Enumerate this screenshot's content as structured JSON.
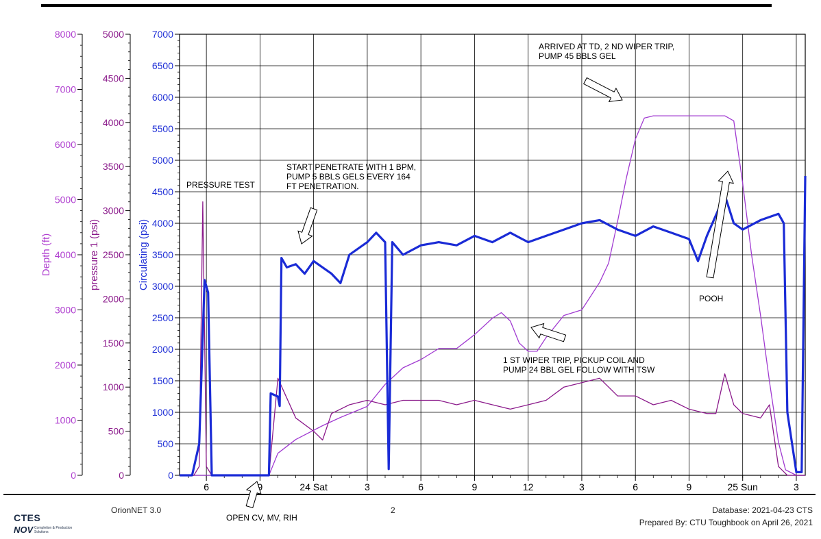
{
  "footer": {
    "software": "OrionNET 3.0",
    "page_number": "2",
    "database": "Database: 2021-04-23 CTS",
    "prepared_by": "Prepared By: CTU Toughbook on April 26, 2021",
    "logo_text": "CTES",
    "logo_brand": "NOV",
    "logo_subtitle": "Completion & Production Solutions"
  },
  "chart_data": {
    "type": "line",
    "x_tick_labels": [
      "6",
      "9",
      "24 Sat",
      "3",
      "6",
      "9",
      "12",
      "3",
      "6",
      "9",
      "25 Sun",
      "3"
    ],
    "x_hours": [
      6,
      9,
      12,
      15,
      18,
      21,
      24,
      27,
      30,
      33,
      36,
      39
    ],
    "xlim_hours": [
      4.5,
      39.5
    ],
    "axes": [
      {
        "key": "depth",
        "label": "Depth  (ft)",
        "color": "#b040d0",
        "range": [
          0,
          8000
        ],
        "ticks": [
          0,
          1000,
          2000,
          3000,
          4000,
          5000,
          6000,
          7000,
          8000
        ]
      },
      {
        "key": "p1",
        "label": "pressure 1  (psi)",
        "color": "#8b1a8b",
        "range": [
          0,
          5000
        ],
        "ticks": [
          0,
          500,
          1000,
          1500,
          2000,
          2500,
          3000,
          3500,
          4000,
          4500,
          5000
        ]
      },
      {
        "key": "circ",
        "label": "Circulating  (psi)",
        "color": "#1f2fd6",
        "range": [
          0,
          7000
        ],
        "ticks": [
          0,
          500,
          1000,
          1500,
          2000,
          2500,
          3000,
          3500,
          4000,
          4500,
          5000,
          5500,
          6000,
          6500,
          7000
        ]
      }
    ],
    "series": [
      {
        "axis": "depth",
        "color": "#a13bd1",
        "points": [
          [
            4.5,
            0
          ],
          [
            9.5,
            0
          ],
          [
            10,
            400
          ],
          [
            11,
            650
          ],
          [
            12.5,
            900
          ],
          [
            13.5,
            1050
          ],
          [
            15,
            1250
          ],
          [
            16,
            1650
          ],
          [
            17,
            1950
          ],
          [
            18,
            2100
          ],
          [
            19,
            2300
          ],
          [
            20,
            2300
          ],
          [
            21,
            2550
          ],
          [
            22,
            2850
          ],
          [
            22.5,
            2950
          ],
          [
            23,
            2800
          ],
          [
            23.5,
            2400
          ],
          [
            24,
            2250
          ],
          [
            24.5,
            2250
          ],
          [
            25,
            2500
          ],
          [
            26,
            2900
          ],
          [
            27,
            3000
          ],
          [
            28,
            3500
          ],
          [
            28.5,
            3850
          ],
          [
            29,
            4600
          ],
          [
            29.5,
            5400
          ],
          [
            30,
            6100
          ],
          [
            30.5,
            6480
          ],
          [
            31,
            6520
          ],
          [
            33,
            6520
          ],
          [
            35,
            6520
          ],
          [
            35.5,
            6430
          ],
          [
            36,
            5300
          ],
          [
            36.5,
            4000
          ],
          [
            37,
            2900
          ],
          [
            37.5,
            1700
          ],
          [
            38,
            600
          ],
          [
            38.4,
            100
          ],
          [
            39,
            0
          ],
          [
            39.5,
            0
          ]
        ]
      },
      {
        "axis": "p1",
        "color": "#8b1a8b",
        "points": [
          [
            4.5,
            0
          ],
          [
            5.3,
            0
          ],
          [
            5.6,
            100
          ],
          [
            5.8,
            3100
          ],
          [
            6,
            100
          ],
          [
            6.3,
            0
          ],
          [
            9.5,
            0
          ],
          [
            10,
            1100
          ],
          [
            11,
            650
          ],
          [
            12,
            500
          ],
          [
            12.5,
            400
          ],
          [
            13,
            700
          ],
          [
            13.5,
            750
          ],
          [
            14,
            800
          ],
          [
            15,
            850
          ],
          [
            16,
            800
          ],
          [
            17,
            850
          ],
          [
            18,
            850
          ],
          [
            19,
            850
          ],
          [
            20,
            800
          ],
          [
            21,
            850
          ],
          [
            22,
            800
          ],
          [
            23,
            750
          ],
          [
            24,
            800
          ],
          [
            25,
            850
          ],
          [
            26,
            1000
          ],
          [
            27,
            1050
          ],
          [
            28,
            1100
          ],
          [
            28.5,
            1000
          ],
          [
            29,
            900
          ],
          [
            30,
            900
          ],
          [
            31,
            800
          ],
          [
            32,
            850
          ],
          [
            33,
            750
          ],
          [
            34,
            700
          ],
          [
            34.5,
            700
          ],
          [
            35,
            1150
          ],
          [
            35.5,
            800
          ],
          [
            36,
            700
          ],
          [
            37,
            650
          ],
          [
            37.5,
            800
          ],
          [
            38,
            100
          ],
          [
            38.5,
            0
          ],
          [
            39.5,
            0
          ]
        ]
      },
      {
        "axis": "circ",
        "color": "#1a2bd6",
        "points": [
          [
            4.5,
            0
          ],
          [
            5.2,
            0
          ],
          [
            5.6,
            500
          ],
          [
            5.9,
            3100
          ],
          [
            6.1,
            2900
          ],
          [
            6.3,
            0
          ],
          [
            9,
            0
          ],
          [
            9.5,
            0
          ],
          [
            9.6,
            1300
          ],
          [
            10,
            1250
          ],
          [
            10.1,
            1100
          ],
          [
            10.2,
            3450
          ],
          [
            10.5,
            3300
          ],
          [
            11,
            3350
          ],
          [
            11.5,
            3200
          ],
          [
            12,
            3400
          ],
          [
            12.5,
            3300
          ],
          [
            13,
            3200
          ],
          [
            13.5,
            3050
          ],
          [
            14,
            3500
          ],
          [
            15,
            3700
          ],
          [
            15.5,
            3850
          ],
          [
            16,
            3700
          ],
          [
            16.2,
            100
          ],
          [
            16.4,
            3700
          ],
          [
            17,
            3500
          ],
          [
            18,
            3650
          ],
          [
            19,
            3700
          ],
          [
            20,
            3650
          ],
          [
            21,
            3800
          ],
          [
            22,
            3700
          ],
          [
            23,
            3850
          ],
          [
            24,
            3700
          ],
          [
            25,
            3800
          ],
          [
            26,
            3900
          ],
          [
            27,
            4000
          ],
          [
            28,
            4050
          ],
          [
            29,
            3900
          ],
          [
            30,
            3800
          ],
          [
            31,
            3950
          ],
          [
            32,
            3850
          ],
          [
            33,
            3750
          ],
          [
            33.5,
            3400
          ],
          [
            34,
            3800
          ],
          [
            35,
            4450
          ],
          [
            35.5,
            4000
          ],
          [
            36,
            3900
          ],
          [
            37,
            4050
          ],
          [
            38,
            4150
          ],
          [
            38.3,
            4000
          ],
          [
            38.5,
            1000
          ],
          [
            39,
            50
          ],
          [
            39.3,
            50
          ],
          [
            39.5,
            4750
          ]
        ]
      }
    ],
    "annotations": [
      {
        "text": "PRESSURE TEST"
      },
      {
        "text": "START PENETRATE WITH 1 BPM,\nPUMP 5 BBLS GELS EVERY 164\nFT PENETRATION."
      },
      {
        "text": "ARRIVED AT TD,  2 ND WIPER TRIP,\nPUMP 45 BBLS GEL"
      },
      {
        "text": "1 ST WIPER TRIP, PICKUP COIL AND\nPUMP 24 BBL GEL FOLLOW WITH TSW"
      },
      {
        "text": "POOH"
      },
      {
        "text": "OPEN CV, MV, RIH"
      }
    ],
    "grid": true
  }
}
